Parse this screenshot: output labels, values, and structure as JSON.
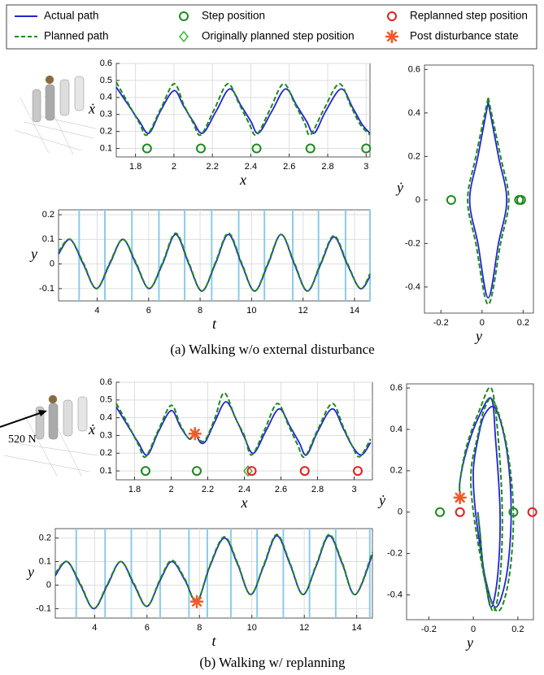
{
  "legend": [
    {
      "name": "Actual path",
      "color": "#2424d8",
      "shape": "line"
    },
    {
      "name": "Planned path",
      "color": "#1e8a1e",
      "shape": "dash"
    },
    {
      "name": "Step position",
      "color": "#1e8a1e",
      "shape": "circle"
    },
    {
      "name": "Originally planned step position",
      "color": "#3cb43c",
      "shape": "diamond"
    },
    {
      "name": "Replanned step position",
      "color": "#e02020",
      "shape": "circle"
    },
    {
      "name": "Post disturbance state",
      "color": "#f05a28",
      "shape": "star"
    }
  ],
  "captions": [
    "(a) Walking w/o external disturbance",
    "(b) Walking w/ replanning"
  ],
  "annotation": "520 N",
  "chart_data": [
    {
      "type": "line",
      "xlabel": "x",
      "ylabel": "ẋ",
      "xlim": [
        1.7,
        3.02
      ],
      "ylim": [
        0.05,
        0.6
      ],
      "xticks": [
        1.8,
        2,
        2.2,
        2.4,
        2.6,
        2.8,
        3
      ],
      "yticks": [
        0.1,
        0.2,
        0.3,
        0.4,
        0.5,
        0.6
      ],
      "grid": true,
      "series": [
        {
          "color": "#2424d8",
          "style": "solid",
          "x": [
            1.7,
            1.76,
            1.82,
            1.87,
            1.93,
            2.0,
            2.05,
            2.1,
            2.15,
            2.22,
            2.29,
            2.35,
            2.4,
            2.44,
            2.51,
            2.58,
            2.64,
            2.69,
            2.73,
            2.79,
            2.87,
            2.93,
            2.98,
            3.02
          ],
          "values": [
            0.46,
            0.36,
            0.26,
            0.19,
            0.32,
            0.44,
            0.35,
            0.26,
            0.19,
            0.32,
            0.45,
            0.35,
            0.26,
            0.19,
            0.32,
            0.45,
            0.35,
            0.26,
            0.19,
            0.32,
            0.45,
            0.34,
            0.24,
            0.19
          ]
        },
        {
          "color": "#1e8a1e",
          "style": "dashed",
          "x": [
            1.7,
            1.76,
            1.82,
            1.86,
            1.93,
            2.0,
            2.05,
            2.1,
            2.14,
            2.21,
            2.28,
            2.34,
            2.39,
            2.43,
            2.5,
            2.57,
            2.63,
            2.68,
            2.71,
            2.78,
            2.86,
            2.92,
            2.97,
            3.02
          ],
          "values": [
            0.49,
            0.37,
            0.25,
            0.18,
            0.33,
            0.48,
            0.36,
            0.25,
            0.18,
            0.33,
            0.48,
            0.36,
            0.25,
            0.18,
            0.33,
            0.48,
            0.36,
            0.25,
            0.18,
            0.33,
            0.48,
            0.35,
            0.24,
            0.18
          ]
        }
      ],
      "markers": [
        {
          "shape": "circle",
          "color": "#1e8a1e",
          "x": [
            1.86,
            2.14,
            2.43,
            2.71,
            3.0
          ],
          "values": [
            0.1,
            0.1,
            0.1,
            0.1,
            0.1
          ]
        }
      ]
    },
    {
      "type": "line",
      "xlabel": "t",
      "ylabel": "y",
      "xlim": [
        2.5,
        14.6
      ],
      "ylim": [
        -0.15,
        0.22
      ],
      "xticks": [
        4,
        6,
        8,
        10,
        12,
        14
      ],
      "yticks": [
        -0.1,
        0,
        0.1,
        0.2
      ],
      "grid": true,
      "vlines": [
        3.3,
        4.3,
        5.35,
        6.4,
        7.4,
        8.45,
        9.5,
        10.5,
        11.6,
        12.6,
        13.65,
        14.6
      ],
      "series": [
        {
          "color": "#2424d8",
          "style": "solid",
          "x": [
            2.5,
            2.95,
            3.46,
            3.97,
            4.49,
            5.0,
            5.51,
            6.02,
            6.54,
            7.05,
            7.56,
            8.07,
            8.59,
            9.1,
            9.61,
            10.12,
            10.64,
            11.15,
            11.66,
            12.17,
            12.69,
            13.2,
            13.71,
            14.22,
            14.6
          ],
          "values": [
            0.04,
            0.1,
            0,
            -0.1,
            0,
            0.1,
            0,
            -0.1,
            0,
            0.12,
            0,
            -0.11,
            0,
            0.12,
            0,
            -0.11,
            0,
            0.12,
            0,
            -0.11,
            0,
            0.11,
            0,
            -0.1,
            -0.05
          ]
        },
        {
          "color": "#1e8a1e",
          "style": "dashed",
          "x": [
            2.5,
            2.95,
            3.46,
            3.97,
            4.49,
            5.0,
            5.51,
            6.02,
            6.54,
            7.05,
            7.56,
            8.07,
            8.59,
            9.1,
            9.61,
            10.12,
            10.64,
            11.15,
            11.66,
            12.17,
            12.69,
            13.2,
            13.71,
            14.22,
            14.6
          ],
          "values": [
            0.05,
            0.1,
            0.005,
            -0.1,
            0.005,
            0.1,
            0.005,
            -0.1,
            0.005,
            0.125,
            0.005,
            -0.11,
            0.005,
            0.125,
            0.005,
            -0.11,
            0.005,
            0.12,
            0.005,
            -0.11,
            0.005,
            0.115,
            0.005,
            -0.1,
            -0.04
          ]
        }
      ]
    },
    {
      "type": "line",
      "xlabel": "y",
      "ylabel": "ẏ",
      "xlim": [
        -0.28,
        0.25
      ],
      "ylim": [
        -0.52,
        0.62
      ],
      "xticks": [
        -0.2,
        0,
        0.2
      ],
      "yticks": [
        -0.4,
        -0.2,
        0,
        0.2,
        0.4,
        0.6
      ],
      "grid": false,
      "series": [
        {
          "color": "#2424d8",
          "style": "solid",
          "x": [
            0.03,
            0.08,
            0.12,
            0.08,
            0.03,
            -0.02,
            -0.06,
            -0.02,
            0.03
          ],
          "values": [
            0.45,
            0.2,
            0,
            -0.2,
            -0.45,
            -0.2,
            0,
            0.2,
            0.45
          ]
        },
        {
          "color": "#1e8a1e",
          "style": "dashed",
          "x": [
            0.03,
            0.09,
            0.13,
            0.09,
            0.03,
            -0.03,
            -0.07,
            -0.03,
            0.03
          ],
          "values": [
            0.47,
            0.2,
            0,
            -0.2,
            -0.48,
            -0.2,
            0,
            0.2,
            0.47
          ]
        }
      ],
      "markers": [
        {
          "shape": "circle",
          "color": "#1e8a1e",
          "x": [
            -0.15,
            0.18,
            0.19
          ],
          "values": [
            0,
            0,
            0
          ]
        }
      ]
    },
    {
      "type": "line",
      "xlabel": "x",
      "ylabel": "ẋ",
      "xlim": [
        1.7,
        3.1
      ],
      "ylim": [
        0.05,
        0.6
      ],
      "xticks": [
        1.8,
        2,
        2.2,
        2.4,
        2.6,
        2.8,
        3
      ],
      "yticks": [
        0.1,
        0.2,
        0.3,
        0.4,
        0.5,
        0.6
      ],
      "grid": true,
      "series": [
        {
          "color": "#2424d8",
          "style": "solid",
          "x": [
            1.7,
            1.76,
            1.82,
            1.87,
            1.93,
            2.0,
            2.05,
            2.1,
            2.13,
            2.16,
            2.19,
            2.24,
            2.3,
            2.36,
            2.4,
            2.45,
            2.52,
            2.59,
            2.65,
            2.7,
            2.74,
            2.8,
            2.88,
            2.94,
            2.99,
            3.04,
            3.09
          ],
          "values": [
            0.46,
            0.36,
            0.26,
            0.19,
            0.32,
            0.44,
            0.35,
            0.28,
            0.31,
            0.26,
            0.27,
            0.38,
            0.49,
            0.38,
            0.29,
            0.2,
            0.33,
            0.45,
            0.35,
            0.26,
            0.19,
            0.32,
            0.45,
            0.34,
            0.24,
            0.19,
            0.26
          ]
        },
        {
          "color": "#1e8a1e",
          "style": "dashed",
          "x": [
            1.7,
            1.76,
            1.82,
            1.86,
            1.93,
            2.0,
            2.05,
            2.1,
            2.13,
            2.16,
            2.19,
            2.24,
            2.29,
            2.35,
            2.4,
            2.44,
            2.51,
            2.58,
            2.64,
            2.69,
            2.73,
            2.8,
            2.88,
            2.94,
            2.99,
            3.03,
            3.09
          ],
          "values": [
            0.48,
            0.37,
            0.25,
            0.18,
            0.33,
            0.47,
            0.36,
            0.28,
            0.31,
            0.27,
            0.28,
            0.4,
            0.54,
            0.4,
            0.3,
            0.19,
            0.33,
            0.48,
            0.36,
            0.25,
            0.18,
            0.33,
            0.48,
            0.35,
            0.24,
            0.18,
            0.28
          ]
        }
      ],
      "markers": [
        {
          "shape": "circle",
          "color": "#1e8a1e",
          "x": [
            1.86,
            2.14
          ],
          "values": [
            0.1,
            0.1
          ]
        },
        {
          "shape": "diamond",
          "color": "#3cb43c",
          "x": [
            2.42
          ],
          "values": [
            0.1
          ]
        },
        {
          "shape": "circle",
          "color": "#e02020",
          "x": [
            2.44,
            2.73,
            3.02
          ],
          "values": [
            0.1,
            0.1,
            0.1
          ]
        },
        {
          "shape": "star",
          "color": "#f05a28",
          "x": [
            2.13
          ],
          "values": [
            0.31
          ]
        }
      ]
    },
    {
      "type": "line",
      "xlabel": "t",
      "ylabel": "y",
      "xlim": [
        2.5,
        14.6
      ],
      "ylim": [
        -0.14,
        0.24
      ],
      "xticks": [
        4,
        6,
        8,
        10,
        12,
        14
      ],
      "yticks": [
        -0.1,
        0,
        0.1,
        0.2
      ],
      "grid": true,
      "vlines": [
        3.3,
        4.4,
        5.4,
        6.5,
        7.6,
        8.3,
        9.2,
        10.2,
        11.2,
        12.2,
        13.2,
        14.5
      ],
      "series": [
        {
          "color": "#2424d8",
          "style": "solid",
          "x": [
            2.5,
            2.95,
            3.46,
            3.97,
            4.49,
            5.0,
            5.51,
            6.0,
            6.5,
            6.95,
            7.45,
            7.9,
            8.4,
            8.95,
            9.45,
            9.95,
            10.45,
            10.95,
            11.45,
            11.95,
            12.45,
            12.95,
            13.45,
            13.95,
            14.6
          ],
          "values": [
            0.04,
            0.1,
            0,
            -0.1,
            0,
            0.1,
            0,
            -0.09,
            0.02,
            0.1,
            0.02,
            -0.07,
            0.08,
            0.2,
            0.09,
            -0.04,
            0.08,
            0.21,
            0.09,
            -0.04,
            0.08,
            0.21,
            0.09,
            -0.04,
            0.13
          ]
        },
        {
          "color": "#1e8a1e",
          "style": "dashed",
          "x": [
            2.5,
            2.95,
            3.46,
            3.97,
            4.49,
            5.0,
            5.51,
            6.0,
            6.5,
            6.95,
            7.45,
            7.9,
            8.4,
            8.95,
            9.45,
            9.95,
            10.45,
            10.95,
            11.45,
            11.95,
            12.45,
            12.95,
            13.45,
            13.95,
            14.6
          ],
          "values": [
            0.05,
            0.1,
            0.005,
            -0.1,
            0.005,
            0.1,
            0.005,
            -0.09,
            0.025,
            0.105,
            0.025,
            -0.07,
            0.085,
            0.205,
            0.095,
            -0.04,
            0.085,
            0.215,
            0.095,
            -0.04,
            0.085,
            0.215,
            0.095,
            -0.04,
            0.14
          ]
        }
      ],
      "markers": [
        {
          "shape": "star",
          "color": "#f05a28",
          "x": [
            7.9
          ],
          "values": [
            -0.07
          ]
        }
      ]
    },
    {
      "type": "line",
      "xlabel": "y",
      "ylabel": "ẏ",
      "xlim": [
        -0.3,
        0.27
      ],
      "ylim": [
        -0.52,
        0.62
      ],
      "xticks": [
        -0.2,
        0,
        0.2
      ],
      "yticks": [
        -0.4,
        -0.2,
        0,
        0.2,
        0.4,
        0.6
      ],
      "grid": false,
      "series": [
        {
          "color": "#2424d8",
          "style": "solid",
          "x": [
            -0.06,
            -0.06,
            -0.03,
            0.02,
            0.08,
            0.1,
            0.12,
            0.11,
            0.08,
            0.05,
            0.01,
            0.0,
            0.02,
            0.05,
            0.1,
            0.15,
            0.17,
            0.15,
            0.1,
            0.05,
            0.03,
            0.02
          ],
          "values": [
            0.07,
            0.15,
            0.3,
            0.45,
            0.55,
            0.35,
            0.0,
            -0.3,
            -0.46,
            -0.3,
            0.0,
            0.2,
            0.35,
            0.47,
            0.5,
            0.3,
            0.0,
            -0.3,
            -0.46,
            -0.3,
            -0.1,
            0.0
          ]
        },
        {
          "color": "#1e8a1e",
          "style": "dashed",
          "x": [
            -0.06,
            -0.06,
            -0.03,
            0.03,
            0.08,
            0.11,
            0.13,
            0.12,
            0.09,
            0.05,
            0.0,
            -0.01,
            0.02,
            0.05,
            0.09,
            0.15,
            0.18,
            0.16,
            0.11,
            0.05,
            0.03,
            0.02
          ],
          "values": [
            0.07,
            0.15,
            0.32,
            0.5,
            0.6,
            0.38,
            0.0,
            -0.32,
            -0.48,
            -0.32,
            0.0,
            0.2,
            0.37,
            0.5,
            0.54,
            0.32,
            0.0,
            -0.32,
            -0.48,
            -0.32,
            -0.1,
            0.0
          ]
        }
      ],
      "markers": [
        {
          "shape": "circle",
          "color": "#1e8a1e",
          "x": [
            -0.15,
            0.18
          ],
          "values": [
            0,
            0
          ]
        },
        {
          "shape": "circle",
          "color": "#e02020",
          "x": [
            -0.06,
            0.265
          ],
          "values": [
            0,
            0
          ]
        },
        {
          "shape": "star",
          "color": "#f05a28",
          "x": [
            -0.06
          ],
          "values": [
            0.07
          ]
        }
      ]
    }
  ]
}
